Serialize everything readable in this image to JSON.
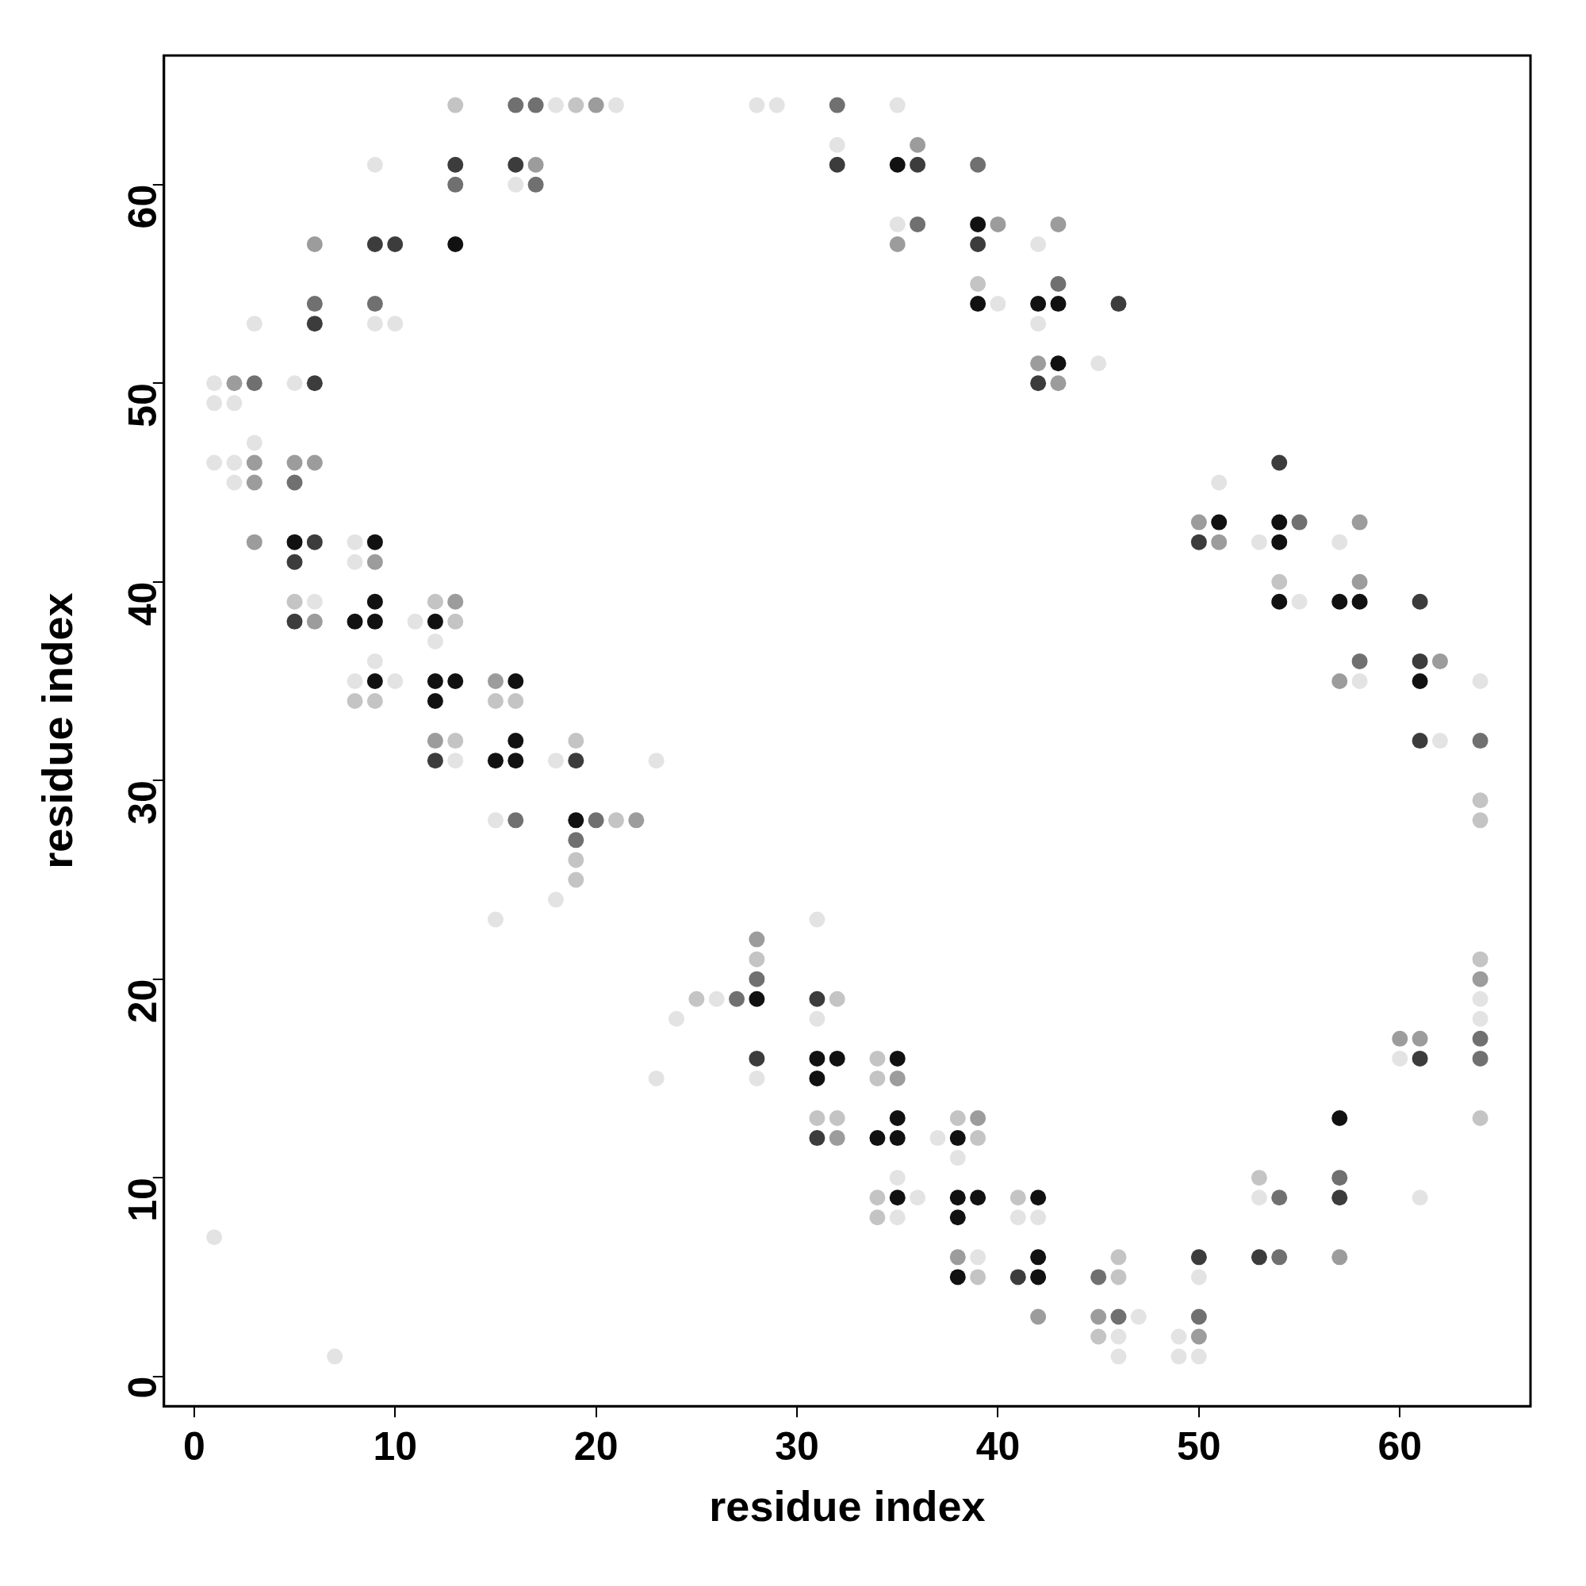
{
  "chart_data": {
    "type": "scatter",
    "xlabel": "residue index",
    "ylabel": "residue index",
    "xlim": [
      -1.5,
      66.5
    ],
    "ylim": [
      -1.5,
      66.5
    ],
    "xticks": [
      0,
      10,
      20,
      30,
      40,
      50,
      60
    ],
    "yticks": [
      0,
      10,
      20,
      30,
      40,
      50,
      60
    ],
    "grid": false,
    "legend": false,
    "marker": "circle",
    "series": [
      {
        "color": "#e3e3e3",
        "x": [
          18,
          21,
          28,
          29,
          35,
          32,
          9,
          16,
          35,
          42,
          40,
          3,
          9,
          10,
          42,
          45,
          1,
          5,
          1,
          2,
          3,
          1,
          2,
          2,
          51,
          8,
          53,
          57,
          8,
          6,
          55,
          11,
          12,
          9,
          8,
          10,
          58,
          64,
          62,
          13,
          18,
          23,
          15,
          18,
          15,
          31,
          26,
          64,
          24,
          31,
          64,
          60,
          23,
          28,
          37,
          38,
          35,
          36,
          53,
          61,
          35,
          41,
          42,
          1,
          39,
          50,
          47,
          46,
          49,
          7,
          46,
          49,
          50
        ],
        "values": [
          64,
          64,
          64,
          64,
          64,
          62,
          61,
          60,
          58,
          57,
          54,
          53,
          53,
          53,
          53,
          51,
          50,
          50,
          49,
          49,
          47,
          46,
          46,
          45,
          45,
          42,
          42,
          42,
          41,
          39,
          39,
          38,
          37,
          36,
          35,
          35,
          35,
          35,
          32,
          31,
          31,
          31,
          28,
          24,
          23,
          23,
          19,
          19,
          18,
          18,
          18,
          16,
          15,
          15,
          12,
          11,
          10,
          9,
          9,
          9,
          8,
          8,
          8,
          7,
          6,
          5,
          3,
          2,
          2,
          1,
          1,
          1,
          1
        ]
      },
      {
        "color": "#c4c4c4",
        "x": [
          13,
          19,
          39,
          54,
          5,
          12,
          13,
          8,
          9,
          15,
          16,
          13,
          19,
          64,
          21,
          64,
          19,
          19,
          28,
          64,
          25,
          32,
          34,
          34,
          31,
          32,
          38,
          64,
          39,
          53,
          34,
          41,
          34,
          46,
          39,
          46,
          45
        ],
        "values": [
          64,
          64,
          55,
          40,
          39,
          39,
          38,
          34,
          34,
          34,
          34,
          32,
          32,
          29,
          28,
          28,
          26,
          25,
          21,
          21,
          19,
          19,
          16,
          15,
          13,
          13,
          13,
          13,
          12,
          10,
          9,
          9,
          8,
          6,
          5,
          5,
          2
        ]
      },
      {
        "color": "#9c9c9c",
        "x": [
          20,
          36,
          17,
          40,
          43,
          6,
          35,
          42,
          2,
          43,
          3,
          5,
          6,
          3,
          50,
          58,
          3,
          51,
          9,
          58,
          13,
          6,
          62,
          15,
          57,
          12,
          22,
          28,
          64,
          60,
          61,
          35,
          39,
          32,
          38,
          57,
          42,
          45,
          50
        ],
        "values": [
          64,
          62,
          61,
          58,
          58,
          57,
          57,
          51,
          50,
          50,
          46,
          46,
          46,
          45,
          43,
          43,
          42,
          42,
          41,
          40,
          39,
          38,
          36,
          35,
          35,
          32,
          28,
          22,
          20,
          17,
          17,
          15,
          13,
          12,
          6,
          6,
          3,
          3,
          2
        ]
      },
      {
        "color": "#707070",
        "x": [
          16,
          17,
          32,
          39,
          13,
          17,
          36,
          43,
          6,
          9,
          3,
          5,
          55,
          58,
          64,
          16,
          20,
          19,
          28,
          27,
          64,
          64,
          57,
          54,
          54,
          45,
          46,
          50
        ],
        "values": [
          64,
          64,
          64,
          61,
          60,
          60,
          58,
          55,
          54,
          54,
          50,
          45,
          43,
          36,
          32,
          28,
          28,
          27,
          20,
          19,
          17,
          16,
          10,
          9,
          6,
          5,
          3,
          3
        ]
      },
      {
        "color": "#3c3c3c",
        "x": [
          13,
          16,
          32,
          36,
          9,
          10,
          39,
          46,
          6,
          6,
          42,
          54,
          6,
          50,
          5,
          61,
          5,
          61,
          61,
          12,
          19,
          31,
          28,
          61,
          31,
          57,
          41,
          50,
          53
        ],
        "values": [
          61,
          61,
          61,
          61,
          57,
          57,
          57,
          54,
          53,
          50,
          50,
          46,
          42,
          42,
          41,
          39,
          38,
          36,
          32,
          31,
          31,
          19,
          16,
          16,
          12,
          9,
          5,
          6,
          6
        ]
      },
      {
        "color": "#111111",
        "x": [
          35,
          39,
          13,
          39,
          42,
          43,
          43,
          51,
          54,
          5,
          9,
          54,
          9,
          54,
          57,
          58,
          8,
          9,
          12,
          9,
          12,
          13,
          16,
          61,
          12,
          16,
          15,
          16,
          19,
          28,
          31,
          32,
          35,
          31,
          35,
          57,
          34,
          35,
          38,
          35,
          38,
          39,
          42,
          38,
          42,
          38,
          42
        ],
        "values": [
          61,
          58,
          57,
          54,
          54,
          54,
          51,
          43,
          43,
          42,
          42,
          42,
          39,
          39,
          39,
          39,
          38,
          38,
          38,
          35,
          35,
          35,
          35,
          35,
          34,
          32,
          31,
          31,
          28,
          19,
          16,
          16,
          16,
          15,
          13,
          13,
          12,
          12,
          12,
          9,
          9,
          9,
          9,
          8,
          6,
          5,
          5
        ]
      }
    ]
  }
}
